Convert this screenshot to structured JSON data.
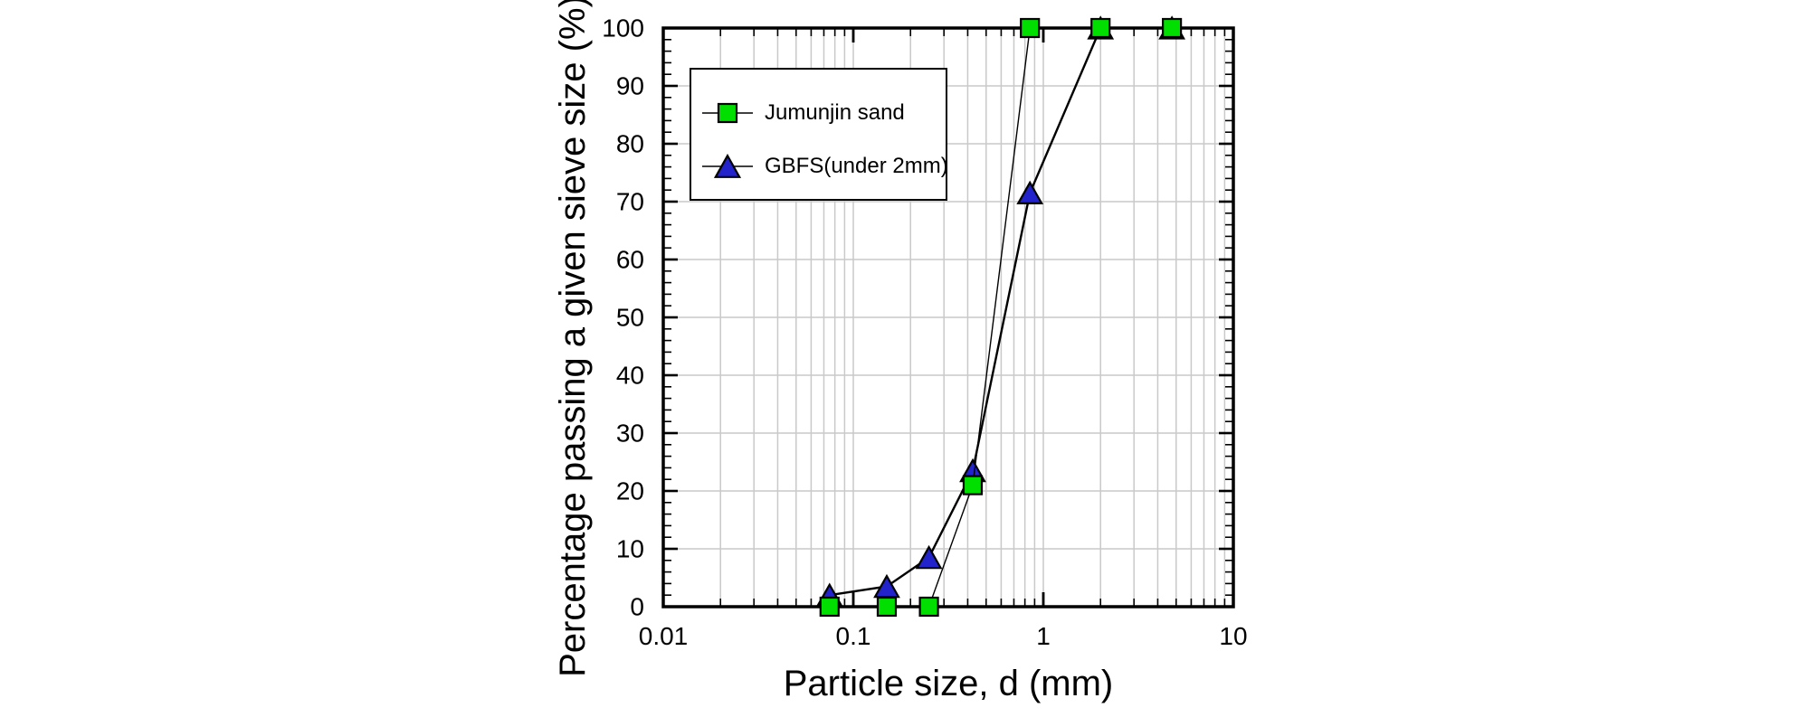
{
  "figure": {
    "x_axis_title": "Particle size, d (mm)",
    "y_axis_title": "Percentage passing a given sieve size (%)"
  },
  "chart_data": {
    "type": "line",
    "title": "",
    "xlabel": "Particle size, d (mm)",
    "ylabel": "Percentage passing a given sieve size (%)",
    "x_scale": "log",
    "xlim": [
      0.01,
      10
    ],
    "ylim": [
      0,
      100
    ],
    "x_tick_values": [
      0.01,
      0.1,
      1,
      10
    ],
    "x_tick_labels": [
      "0.01",
      "0.1",
      "1",
      "10"
    ],
    "y_tick_values": [
      0,
      10,
      20,
      30,
      40,
      50,
      60,
      70,
      80,
      90,
      100
    ],
    "y_tick_labels": [
      "0",
      "10",
      "20",
      "30",
      "40",
      "50",
      "60",
      "70",
      "80",
      "90",
      "100"
    ],
    "y_minor_step": 2,
    "grid": "on",
    "grid_color": "#c9c9c9",
    "axis_color": "#000000",
    "background": "#ffffff",
    "legend_position": "upper-left-inside",
    "series": [
      {
        "name": "Jumunjin sand",
        "marker": "square",
        "marker_color": "#00DF00",
        "marker_edge": "#000000",
        "line_color": "#000000",
        "line_width": 1.4,
        "points": [
          [
            0.075,
            0
          ],
          [
            0.15,
            0
          ],
          [
            0.25,
            0
          ],
          [
            0.425,
            21
          ],
          [
            0.85,
            100
          ],
          [
            2,
            100
          ],
          [
            4.75,
            100
          ]
        ]
      },
      {
        "name": "GBFS(under 2mm)",
        "marker": "triangle",
        "marker_color": "#2323CC",
        "marker_edge": "#000000",
        "line_color": "#000000",
        "line_width": 2.4,
        "points": [
          [
            0.075,
            2
          ],
          [
            0.15,
            3.5
          ],
          [
            0.25,
            8.5
          ],
          [
            0.425,
            23.5
          ],
          [
            0.85,
            71.5
          ],
          [
            2,
            100
          ],
          [
            4.75,
            100
          ]
        ]
      }
    ]
  }
}
